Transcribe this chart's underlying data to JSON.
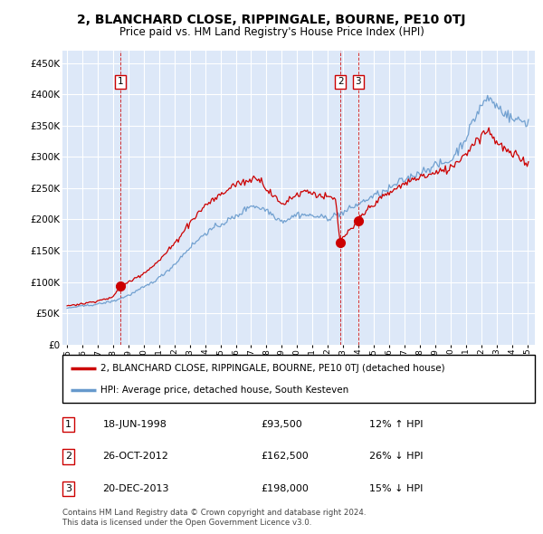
{
  "title": "2, BLANCHARD CLOSE, RIPPINGALE, BOURNE, PE10 0TJ",
  "subtitle": "Price paid vs. HM Land Registry's House Price Index (HPI)",
  "footer_line1": "Contains HM Land Registry data © Crown copyright and database right 2024.",
  "footer_line2": "This data is licensed under the Open Government Licence v3.0.",
  "legend_label_red": "2, BLANCHARD CLOSE, RIPPINGALE, BOURNE, PE10 0TJ (detached house)",
  "legend_label_blue": "HPI: Average price, detached house, South Kesteven",
  "transactions": [
    {
      "num": 1,
      "date": "18-JUN-1998",
      "price": 93500,
      "pct": "12%",
      "dir": "↑",
      "year": 1998.46
    },
    {
      "num": 2,
      "date": "26-OCT-2012",
      "price": 162500,
      "pct": "26%",
      "dir": "↓",
      "year": 2012.82
    },
    {
      "num": 3,
      "date": "20-DEC-2013",
      "price": 198000,
      "pct": "15%",
      "dir": "↓",
      "year": 2013.97
    }
  ],
  "ylim": [
    0,
    470000
  ],
  "yticks": [
    0,
    50000,
    100000,
    150000,
    200000,
    250000,
    300000,
    350000,
    400000,
    450000
  ],
  "xlim_left": 1994.7,
  "xlim_right": 2025.5,
  "background_color": "#dde8f8",
  "grid_color": "#ffffff",
  "red_color": "#cc0000",
  "blue_color": "#6699cc",
  "vline_color": "#cc0000"
}
